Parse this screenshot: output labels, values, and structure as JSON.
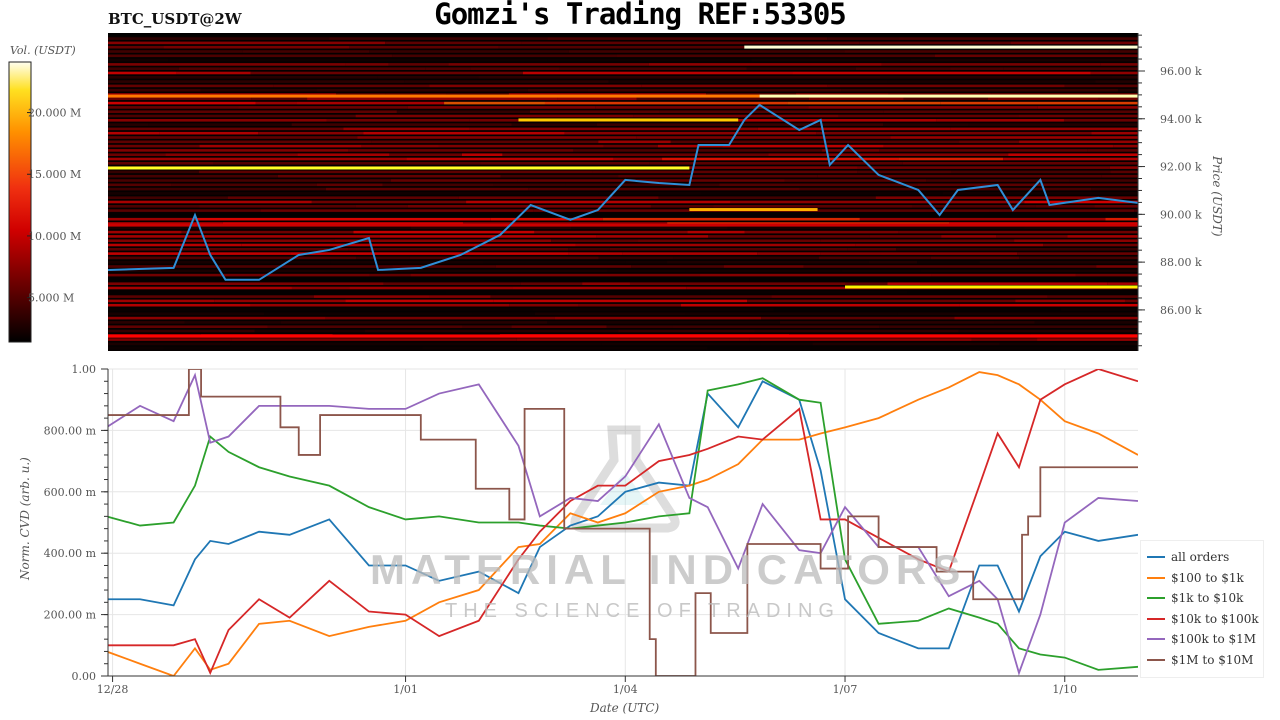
{
  "header": {
    "title": "Gomzi's Trading REF:53305",
    "pair": "BTC_USDT@2W"
  },
  "watermark": {
    "brand": "MATERIAL INDICATORS",
    "tagline": "THE SCIENCE OF TRADING"
  },
  "chart_data": [
    {
      "type": "heatmap",
      "ylabel": "Price (USDT)",
      "colorbar_label": "Vol. (USDT)",
      "colorbar_ticks": [
        "5.000 M",
        "10.000 M",
        "15.000 M",
        "20.000 M"
      ],
      "colorbar_tick_values": [
        5,
        10,
        15,
        20
      ],
      "colorbar_range": [
        1.4,
        24.1
      ],
      "colormap": "hot",
      "ylim": [
        84.28,
        97.59
      ],
      "yticks": [
        86,
        88,
        90,
        92,
        94,
        96
      ],
      "ytick_labels": [
        "86.00 k",
        "88.00 k",
        "90.00 k",
        "92.00 k",
        "94.00 k",
        "96.00 k"
      ],
      "xlim": [
        "12/27 22:30",
        "1/11 00:00"
      ],
      "liquidity_bands": [
        {
          "price": 97.0,
          "from": "1/05 15:00",
          "to": "1/11 00:00",
          "volume": 23.5
        },
        {
          "price": 94.95,
          "from": "12/27 22:30",
          "to": "1/05 20:00",
          "volume": 15.5
        },
        {
          "price": 94.95,
          "from": "1/05 20:00",
          "to": "1/11 00:00",
          "volume": 23.0
        },
        {
          "price": 93.95,
          "from": "1/02 13:00",
          "to": "1/05 13:00",
          "volume": 18.5
        },
        {
          "price": 91.94,
          "from": "12/27 22:30",
          "to": "1/04 21:00",
          "volume": 21.0
        },
        {
          "price": 90.2,
          "from": "1/04 21:00",
          "to": "1/06 15:00",
          "volume": 17.5
        },
        {
          "price": 86.96,
          "from": "1/07 00:00",
          "to": "1/11 00:00",
          "volume": 20.0
        },
        {
          "price": 84.9,
          "from": "12/27 22:30",
          "to": "1/11 00:00",
          "volume": 11.0
        },
        {
          "price": 89.55,
          "from": "12/27 22:30",
          "to": "1/11 00:00",
          "volume": 9.0
        }
      ],
      "price_line": {
        "color": "#2f8fd8",
        "x": [
          "12/27 22:00",
          "12/28 20:00",
          "12/29 03:00",
          "12/29 08:00",
          "12/29 13:00",
          "12/30 00:00",
          "12/30 13:00",
          "12/30 23:00",
          "12/31 12:00",
          "12/31 15:00",
          "1/01 05:00",
          "1/01 18:00",
          "1/02 07:00",
          "1/02 17:00",
          "1/03 06:00",
          "1/03 15:00",
          "1/04 00:00",
          "1/04 11:00",
          "1/04 21:00",
          "1/05 00:00",
          "1/05 10:00",
          "1/05 15:00",
          "1/05 20:00",
          "1/06 09:00",
          "1/06 16:00",
          "1/06 19:00",
          "1/07 01:00",
          "1/07 11:00",
          "1/08 00:00",
          "1/08 07:00",
          "1/08 13:00",
          "1/09 02:00",
          "1/09 07:00",
          "1/09 16:00",
          "1/09 19:00",
          "1/10 11:00",
          "1/11 00:00"
        ],
        "y": [
          87.67,
          87.76,
          89.97,
          88.3,
          87.26,
          87.26,
          88.3,
          88.51,
          89.01,
          87.67,
          87.76,
          88.3,
          89.14,
          90.39,
          89.77,
          90.18,
          91.44,
          91.31,
          91.23,
          92.9,
          92.9,
          93.95,
          94.58,
          93.53,
          93.95,
          92.07,
          92.9,
          91.65,
          91.02,
          89.97,
          91.02,
          91.23,
          90.18,
          91.44,
          90.39,
          90.69,
          90.48
        ]
      }
    },
    {
      "type": "line",
      "xlabel": "Date (UTC)",
      "ylabel": "Norm. CVD (arb. u.)",
      "ylim": [
        0,
        1
      ],
      "yticks": [
        0,
        0.2,
        0.4,
        0.6,
        0.8,
        1.0
      ],
      "ytick_labels": [
        "0.00",
        "200.00 m",
        "400.00 m",
        "600.00 m",
        "800.00 m",
        "1.00"
      ],
      "xlim": [
        "12/27 22:30",
        "1/11 00:00"
      ],
      "xticks": [
        "12/28 00:00",
        "1/01 00:00",
        "1/04 00:00",
        "1/07 00:00",
        "1/10 00:00"
      ],
      "xtick_labels": [
        "12/28",
        "1/01",
        "1/04",
        "1/07",
        "1/10"
      ],
      "grid": true,
      "legend_position": "right-bottom",
      "x": [
        "12/27 22:00",
        "12/28 09:00",
        "12/28 20:00",
        "12/29 03:00",
        "12/29 08:00",
        "12/29 14:00",
        "12/30 00:00",
        "12/30 10:00",
        "12/30 23:00",
        "12/31 12:00",
        "1/01 00:00",
        "1/01 11:00",
        "1/02 00:00",
        "1/02 13:00",
        "1/02 20:00",
        "1/03 06:00",
        "1/03 15:00",
        "1/04 00:00",
        "1/04 11:00",
        "1/04 21:00",
        "1/05 03:00",
        "1/05 13:00",
        "1/05 21:00",
        "1/06 09:00",
        "1/06 16:00",
        "1/07 00:00",
        "1/07 11:00",
        "1/08 00:00",
        "1/08 10:00",
        "1/08 20:00",
        "1/09 02:00",
        "1/09 09:00",
        "1/09 16:00",
        "1/10 00:00",
        "1/10 11:00",
        "1/11 00:00"
      ],
      "series": [
        {
          "name": "all orders",
          "color": "#1f77b4",
          "values": [
            0.25,
            0.25,
            0.23,
            0.38,
            0.44,
            0.43,
            0.47,
            0.46,
            0.51,
            0.36,
            0.36,
            0.31,
            0.34,
            0.27,
            0.42,
            0.49,
            0.52,
            0.6,
            0.63,
            0.62,
            0.92,
            0.81,
            0.96,
            0.9,
            0.67,
            0.25,
            0.14,
            0.09,
            0.09,
            0.36,
            0.36,
            0.21,
            0.39,
            0.47,
            0.44,
            0.46
          ]
        },
        {
          "name": "$100 to $1k",
          "color": "#ff7f0e",
          "values": [
            0.08,
            0.04,
            0.0,
            0.09,
            0.02,
            0.04,
            0.17,
            0.18,
            0.13,
            0.16,
            0.18,
            0.24,
            0.28,
            0.42,
            0.43,
            0.53,
            0.5,
            0.53,
            0.6,
            0.62,
            0.64,
            0.69,
            0.77,
            0.77,
            0.79,
            0.81,
            0.84,
            0.9,
            0.94,
            0.99,
            0.98,
            0.95,
            0.9,
            0.83,
            0.79,
            0.72
          ]
        },
        {
          "name": "$1k to $10k",
          "color": "#2ca02c",
          "values": [
            0.52,
            0.49,
            0.5,
            0.62,
            0.78,
            0.73,
            0.68,
            0.65,
            0.62,
            0.55,
            0.51,
            0.52,
            0.5,
            0.5,
            0.49,
            0.48,
            0.49,
            0.5,
            0.52,
            0.53,
            0.93,
            0.95,
            0.97,
            0.9,
            0.89,
            0.38,
            0.17,
            0.18,
            0.22,
            0.19,
            0.17,
            0.09,
            0.07,
            0.06,
            0.02,
            0.03
          ]
        },
        {
          "name": "$10k to $100k",
          "color": "#d62728",
          "values": [
            0.1,
            0.1,
            0.1,
            0.12,
            0.01,
            0.15,
            0.25,
            0.19,
            0.31,
            0.21,
            0.2,
            0.13,
            0.18,
            0.38,
            0.47,
            0.57,
            0.62,
            0.62,
            0.7,
            0.72,
            0.74,
            0.78,
            0.77,
            0.87,
            0.51,
            0.51,
            0.45,
            0.38,
            0.34,
            0.62,
            0.79,
            0.68,
            0.9,
            0.95,
            1.0,
            0.96
          ]
        },
        {
          "name": "$100k to $1M",
          "color": "#9467bd",
          "values": [
            0.81,
            0.88,
            0.83,
            0.98,
            0.76,
            0.78,
            0.88,
            0.88,
            0.88,
            0.87,
            0.87,
            0.92,
            0.95,
            0.75,
            0.52,
            0.58,
            0.57,
            0.65,
            0.82,
            0.58,
            0.55,
            0.35,
            0.56,
            0.41,
            0.4,
            0.55,
            0.42,
            0.42,
            0.26,
            0.31,
            0.25,
            0.01,
            0.2,
            0.5,
            0.58,
            0.57
          ]
        },
        {
          "name": "$1M to $10M",
          "color": "#8c564b",
          "step": true,
          "x": [
            "12/27 22:00",
            "12/29 01:00",
            "12/29 05:00",
            "12/30 07:00",
            "12/30 13:00",
            "12/30 20:00",
            "1/01 05:00",
            "1/01 23:00",
            "1/02 10:00",
            "1/02 15:00",
            "1/03 04:00",
            "1/04 08:00",
            "1/04 10:00",
            "1/04 23:00",
            "1/05 04:00",
            "1/05 16:00",
            "1/06 16:00",
            "1/07 01:00",
            "1/07 11:00",
            "1/08 06:00",
            "1/08 18:00",
            "1/09 10:00",
            "1/09 12:00",
            "1/09 16:00",
            "1/11 00:00"
          ],
          "values": [
            0.85,
            1.0,
            0.91,
            0.81,
            0.72,
            0.85,
            0.77,
            0.61,
            0.51,
            0.87,
            0.48,
            0.12,
            0.0,
            0.27,
            0.14,
            0.43,
            0.35,
            0.52,
            0.42,
            0.34,
            0.25,
            0.46,
            0.52,
            0.68,
            0.68
          ]
        }
      ]
    }
  ]
}
